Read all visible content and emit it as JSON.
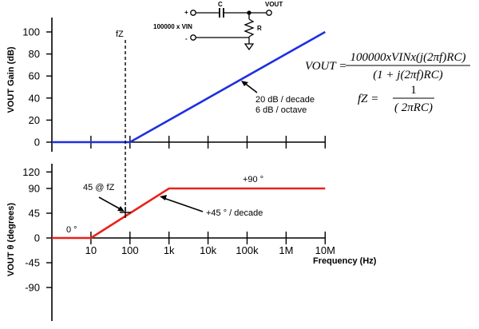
{
  "colors": {
    "gain_line": "#1f2fe0",
    "phase_line": "#e8231c",
    "ink": "#000000"
  },
  "chart_data": [
    {
      "type": "line",
      "panel": "gain",
      "x_scale": "log",
      "x_range": [
        1,
        10000000
      ],
      "ylim": [
        0,
        100
      ],
      "y_ticks": [
        "0",
        "20",
        "40",
        "60",
        "80",
        "100"
      ],
      "ylabel": "VOUT Gain (dB)",
      "series": [
        {
          "x": [
            1,
            100,
            10000000
          ],
          "y": [
            0,
            0,
            100
          ]
        }
      ],
      "marker_label": "fZ",
      "annotation": {
        "line1": "20 dB / decade",
        "line2": "6 dB / octave"
      }
    },
    {
      "type": "line",
      "panel": "phase",
      "x_scale": "log",
      "x_range": [
        1,
        10000000
      ],
      "ylim": [
        -120,
        120
      ],
      "y_ticks": [
        "120",
        "90",
        "45",
        "0",
        "-45",
        "-90"
      ],
      "x_ticks": [
        "10",
        "100",
        "1k",
        "10k",
        "100k",
        "1M",
        "10M"
      ],
      "xlabel": "Frequency (Hz)",
      "ylabel": "VOUT θ (degrees)",
      "series": [
        {
          "x": [
            1,
            10,
            1000,
            10000000
          ],
          "y": [
            0,
            0,
            90,
            90
          ]
        }
      ],
      "annotations": {
        "zero": "0 °",
        "ninety": "+90 °",
        "slope": "+45 ° / decade",
        "at_fz": "45 @ fZ"
      }
    }
  ],
  "circuit": {
    "plus": "+",
    "minus": "-",
    "source": "100000 x VIN",
    "capacitor": "C",
    "resistor": "R",
    "output": "VOUT"
  },
  "equations": {
    "vout_lhs": "VOUT =",
    "vout_num": "100000xVINx(j(2πf)RC)",
    "vout_den": "(1 + j(2πf)RC)",
    "fz_lhs": "fZ =",
    "fz_num": "1",
    "fz_den": "( 2πRC)"
  }
}
